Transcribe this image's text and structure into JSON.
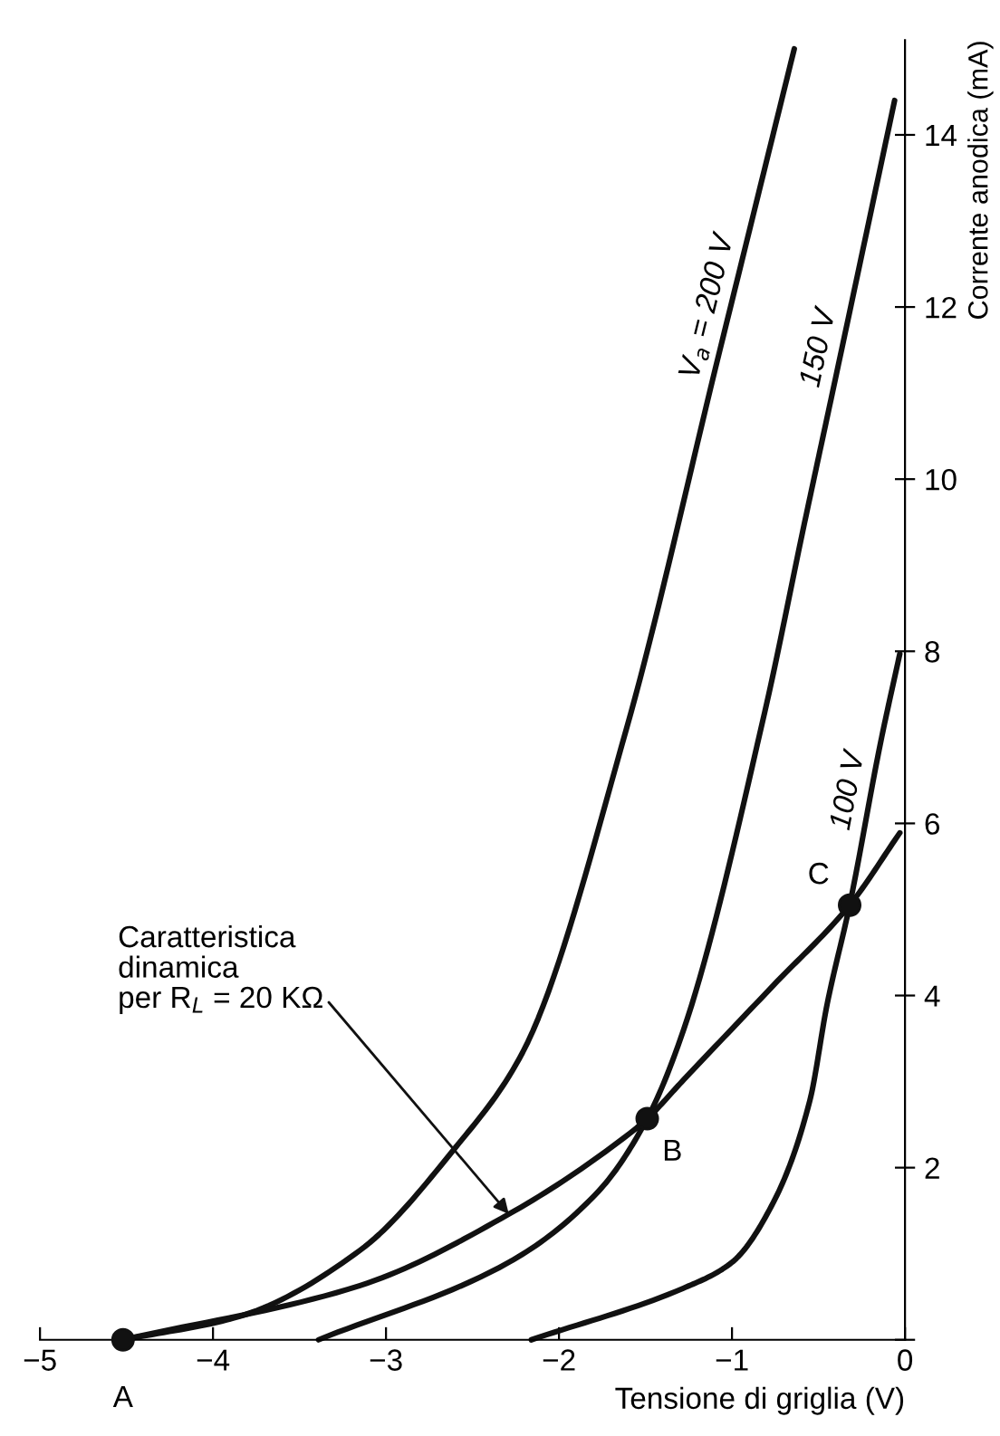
{
  "chart_data": {
    "type": "line",
    "xlabel": "Tensione di griglia (V)",
    "ylabel": "Corrente anodica (mA)",
    "xlim": [
      -5,
      0
    ],
    "ylim": [
      0,
      15.1
    ],
    "xticks": [
      -5,
      -4,
      -3,
      -2,
      -1,
      0
    ],
    "yticks": [
      {
        "value": 0,
        "label": null
      },
      2,
      4,
      6,
      8,
      10,
      12,
      14
    ],
    "grid": false,
    "marker": "none",
    "line_style": "solid",
    "series": [
      {
        "name": "V$_{a}$ = 200 V",
        "color": "#111111",
        "x": [
          -4.52,
          -3.85,
          -3.15,
          -2.6,
          -2.21,
          -1.61,
          -1.07,
          -0.64
        ],
        "values": [
          0,
          0.27,
          1.04,
          2.23,
          3.34,
          7.1,
          11.5,
          15.0
        ]
      },
      {
        "name": "150 V",
        "color": "#111111",
        "x": [
          -3.39,
          -2.29,
          -1.77,
          -1.49,
          -1.28,
          -0.81,
          -0.58,
          -0.42,
          -0.06
        ],
        "values": [
          0,
          0.9,
          1.73,
          2.57,
          3.6,
          7.3,
          9.5,
          11.0,
          14.4
        ]
      },
      {
        "name": "100 V",
        "color": "#111111",
        "x": [
          -2.16,
          -1.28,
          -1.0,
          -0.76,
          -0.55,
          -0.45,
          -0.32,
          -0.14,
          -0.03
        ],
        "values": [
          0,
          0.6,
          0.9,
          1.6,
          2.78,
          3.9,
          5.05,
          6.95,
          7.97
        ]
      },
      {
        "color": "#111111",
        "x": [
          -4.52,
          -3.15,
          -2.29,
          -1.59,
          -1.49,
          -1.28,
          -0.76,
          -0.32,
          -0.03
        ],
        "values": [
          0,
          0.63,
          1.46,
          2.4,
          2.57,
          3.02,
          4.12,
          5.05,
          5.89
        ]
      },
      {
        "type": "scatter",
        "marker": "circle",
        "color": "#111111",
        "x": [
          -4.52,
          -1.49,
          -0.32
        ],
        "values": [
          0,
          2.57,
          5.05
        ]
      }
    ],
    "annotations": [
      {
        "text": "A",
        "x": -4.52,
        "y": 0
      },
      {
        "text": "B",
        "x": -1.49,
        "y": 2.57
      },
      {
        "text": "C",
        "x": -0.32,
        "y": 5.05
      },
      {
        "text": "Caratteristica\ndinamica\nper R$_{L}$ = 20 KΩ",
        "x": -2.29,
        "y": 1.46
      }
    ]
  }
}
